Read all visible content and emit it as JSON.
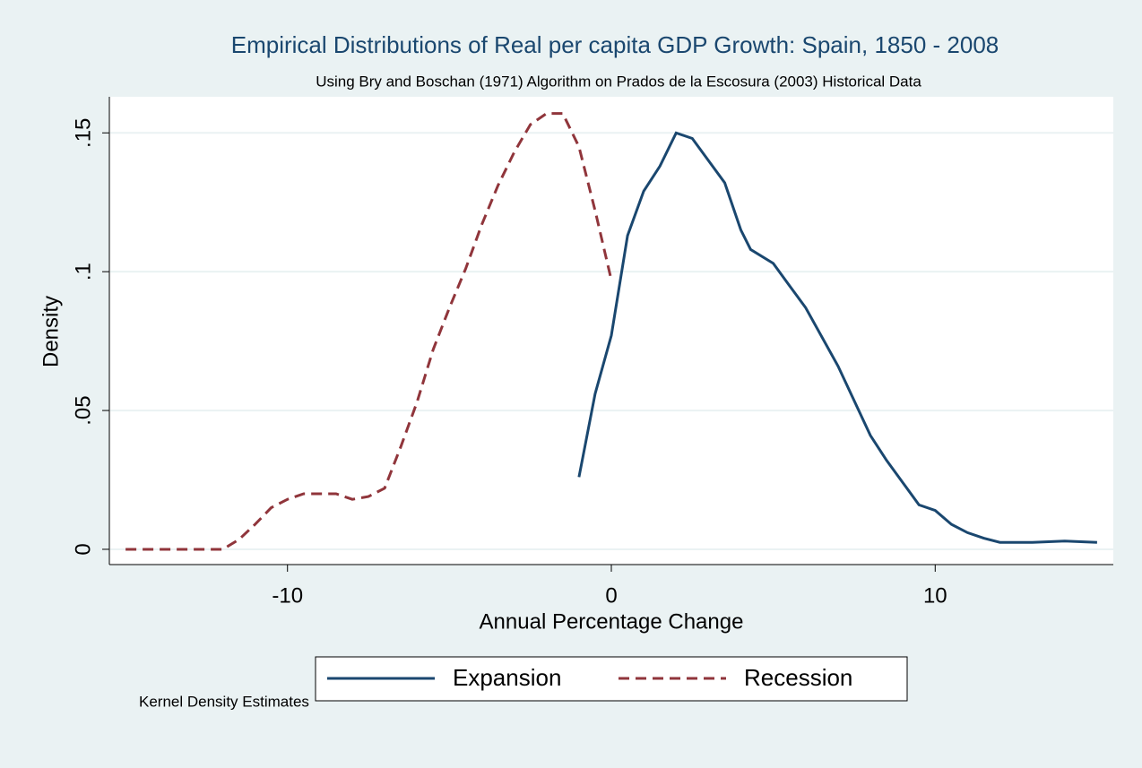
{
  "chart_data": {
    "type": "line",
    "title": "Empirical Distributions of Real per capita GDP Growth: Spain, 1850 - 2008",
    "subtitle": "Using Bry and Boschan (1971) Algorithm on Prados de la Escosura (2003) Historical Data",
    "x_label": "Annual Percentage Change",
    "y_label": "Density",
    "note": "Kernel Density Estimates",
    "xlim": [
      -15.5,
      15.5
    ],
    "ylim": [
      -0.0055,
      0.163
    ],
    "xticks": [
      -10,
      0,
      10
    ],
    "yticks": [
      0,
      {
        "value": 0.05,
        "label": ".05"
      },
      {
        "value": 0.1,
        "label": ".1"
      },
      {
        "value": 0.15,
        "label": ".15"
      }
    ],
    "grid": true,
    "legend_position": "bottom",
    "series": [
      {
        "name": "Expansion",
        "color": "#1a476f",
        "dash": false,
        "x": [
          -1,
          -0.5,
          0,
          0.5,
          1,
          1.5,
          2,
          2.5,
          3,
          3.5,
          4,
          4.3,
          5,
          5.5,
          6,
          7,
          8,
          8.5,
          9,
          9.5,
          10,
          10.5,
          11,
          11.5,
          12,
          13,
          14,
          15
        ],
        "values": [
          0.026,
          0.056,
          0.077,
          0.113,
          0.129,
          0.138,
          0.15,
          0.148,
          0.14,
          0.132,
          0.115,
          0.108,
          0.103,
          0.095,
          0.087,
          0.066,
          0.041,
          0.032,
          0.024,
          0.016,
          0.014,
          0.009,
          0.006,
          0.004,
          0.0025,
          0.0025,
          0.003,
          0.0025
        ]
      },
      {
        "name": "Recession",
        "color": "#90353b",
        "dash": true,
        "x": [
          -15,
          -14,
          -13,
          -12,
          -11.5,
          -11,
          -10.5,
          -10,
          -9.5,
          -9,
          -8.5,
          -8,
          -7.5,
          -7,
          -6.5,
          -6,
          -5.5,
          -5,
          -4.5,
          -4,
          -3.5,
          -3,
          -2.5,
          -2,
          -1.5,
          -1,
          -0.5,
          0
        ],
        "values": [
          0,
          0,
          0,
          0,
          0.0035,
          0.009,
          0.015,
          0.018,
          0.02,
          0.02,
          0.02,
          0.018,
          0.019,
          0.022,
          0.037,
          0.053,
          0.072,
          0.087,
          0.101,
          0.117,
          0.131,
          0.143,
          0.153,
          0.157,
          0.157,
          0.145,
          0.122,
          0.097
        ]
      }
    ]
  }
}
